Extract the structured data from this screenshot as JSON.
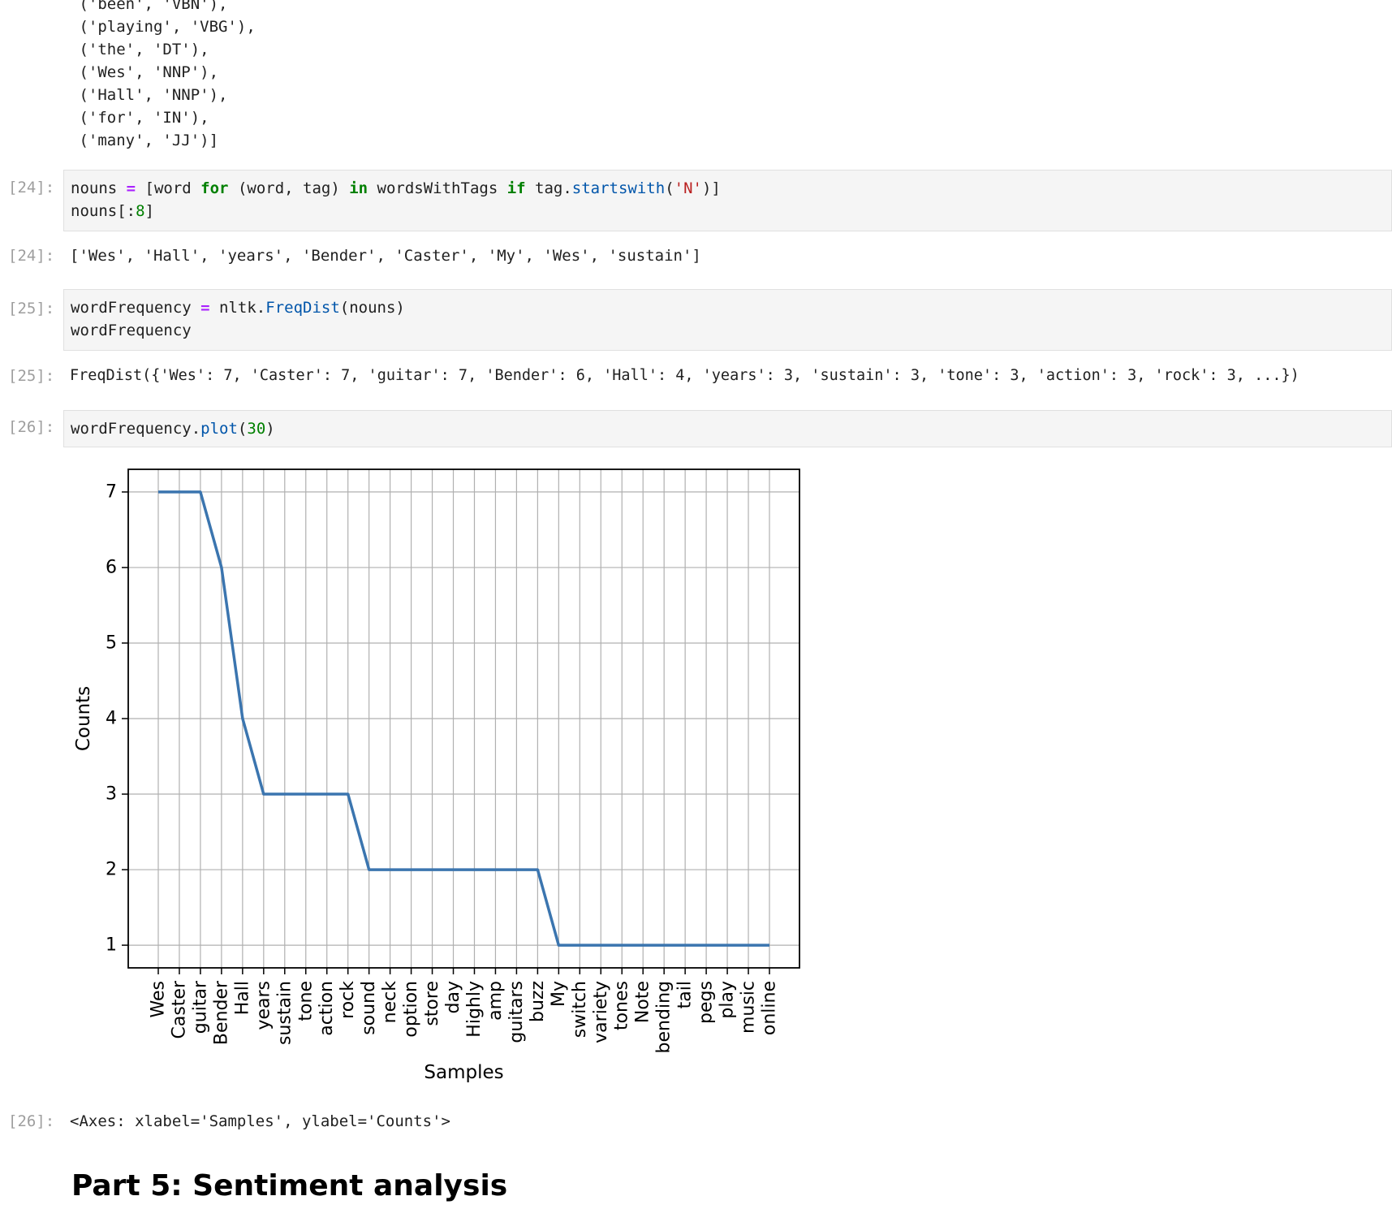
{
  "top_output": {
    "lines": [
      " ('been', 'VBN'),",
      " ('playing', 'VBG'),",
      " ('the', 'DT'),",
      " ('Wes', 'NNP'),",
      " ('Hall', 'NNP'),",
      " ('for', 'IN'),",
      " ('many', 'JJ')]"
    ]
  },
  "cell24": {
    "in_prompt": "[24]:",
    "line1": {
      "t1": "nouns ",
      "t2": "=",
      "t3": " [word ",
      "t4": "for",
      "t5": " (word, tag) ",
      "t6": "in",
      "t7": " wordsWithTags ",
      "t8": "if",
      "t9": " tag.",
      "t10": "startswith",
      "t11": "(",
      "t12": "'N'",
      "t13": ")]"
    },
    "line2": {
      "t1": "nouns[:",
      "t2": "8",
      "t3": "]"
    },
    "out_prompt": "[24]:",
    "output": "['Wes', 'Hall', 'years', 'Bender', 'Caster', 'My', 'Wes', 'sustain']"
  },
  "cell25": {
    "in_prompt": "[25]:",
    "line1": {
      "t1": "wordFrequency ",
      "t2": "=",
      "t3": " nltk.",
      "t4": "FreqDist",
      "t5": "(nouns)"
    },
    "line2": "wordFrequency",
    "out_prompt": "[25]:",
    "output": "FreqDist({'Wes': 7, 'Caster': 7, 'guitar': 7, 'Bender': 6, 'Hall': 4, 'years': 3, 'sustain': 3, 'tone': 3, 'action': 3, 'rock': 3, ...})"
  },
  "cell26": {
    "in_prompt": "[26]:",
    "line1": {
      "t1": "wordFrequency.",
      "t2": "plot",
      "t3": "(",
      "t4": "30",
      "t5": ")"
    },
    "out_prompt": "[26]:",
    "output": "<Axes: xlabel='Samples', ylabel='Counts'>"
  },
  "heading": "Part 5: Sentiment analysis",
  "chart_data": {
    "type": "line",
    "categories": [
      "Wes",
      "Caster",
      "guitar",
      "Bender",
      "Hall",
      "years",
      "sustain",
      "tone",
      "action",
      "rock",
      "sound",
      "neck",
      "option",
      "store",
      "day",
      "Highly",
      "amp",
      "guitars",
      "buzz",
      "My",
      "switch",
      "variety",
      "tones",
      "Note",
      "bending",
      "tail",
      "pegs",
      "play",
      "music",
      "online"
    ],
    "values": [
      7,
      7,
      7,
      6,
      4,
      3,
      3,
      3,
      3,
      3,
      2,
      2,
      2,
      2,
      2,
      2,
      2,
      2,
      2,
      1,
      1,
      1,
      1,
      1,
      1,
      1,
      1,
      1,
      1,
      1
    ],
    "xlabel": "Samples",
    "ylabel": "Counts",
    "yticks": [
      1,
      2,
      3,
      4,
      5,
      6,
      7
    ],
    "ylim": [
      0.7,
      7.3
    ],
    "grid": true,
    "line_color": "#3b75af"
  }
}
